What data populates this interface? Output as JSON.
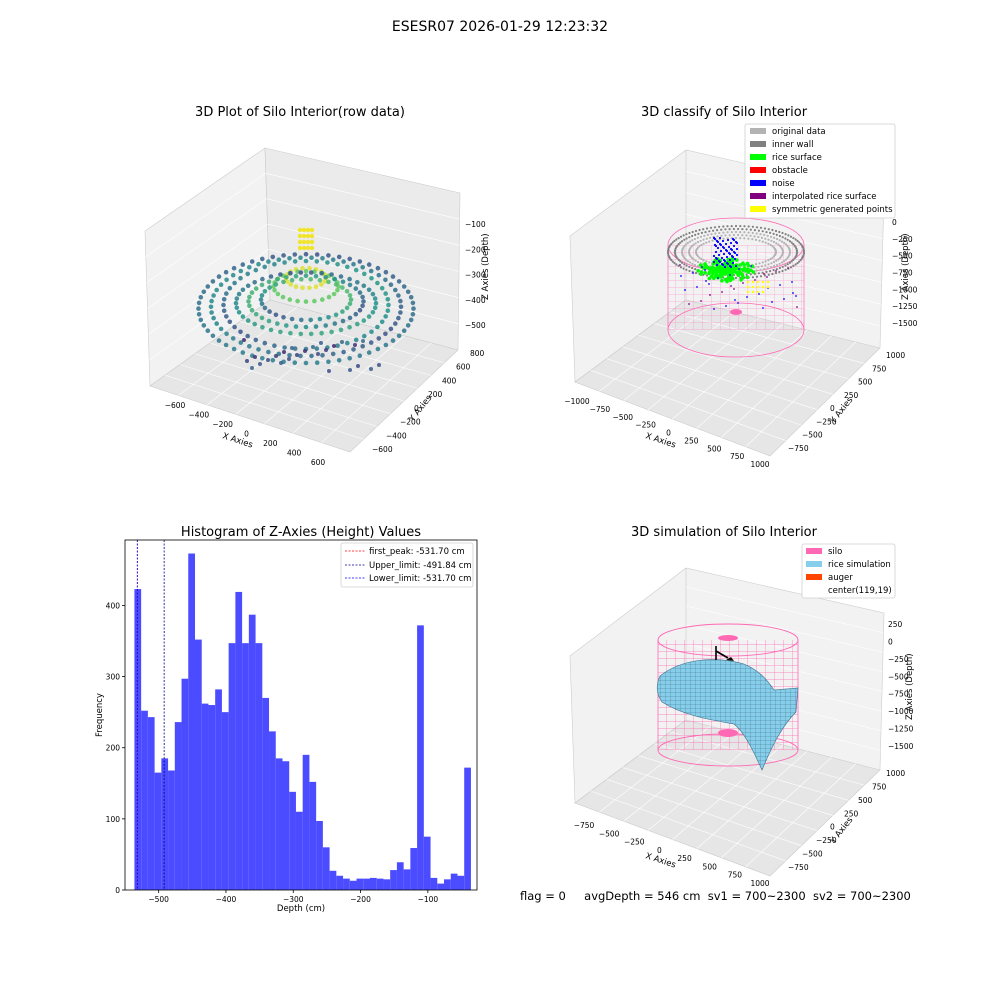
{
  "figure": {
    "suptitle": "ESESR07 2026-01-29 12:23:32",
    "status": {
      "flag": "flag = 0",
      "avg": "avgDepth = 546 cm",
      "sv1": "sv1 = 700~2300",
      "sv2": "sv2 = 700~2300"
    }
  },
  "colors": {
    "histogram_bar": "#4b4bff",
    "first_peak_line": "#ff0000",
    "upper_limit_line": "#00008b",
    "lower_limit_line": "#0000ff",
    "original_data": "#b3b3b3",
    "inner_wall": "#808080",
    "rice_surface": "#00ff00",
    "obstacle": "#ff0000",
    "noise": "#0000ff",
    "interpolated": "#800080",
    "symmetric": "#ffff00",
    "silo": "#ff69b4",
    "rice_simulation": "#87ceeb",
    "auger": "#ff4500"
  },
  "chart_data": [
    {
      "type": "scatter",
      "title": "3D Plot of Silo Interior(row data)",
      "xlabel": "X Axies",
      "ylabel": "Y Axies",
      "zlabel": "Z Axies (Depth)",
      "x_ticks": [
        "−600",
        "−400",
        "−200",
        "0",
        "200",
        "400",
        "600"
      ],
      "y_ticks": [
        "−600",
        "−400",
        "−200",
        "0",
        "200",
        "400",
        "600",
        "800"
      ],
      "z_ticks": [
        "−100",
        "−200",
        "−300",
        "−400",
        "−500"
      ],
      "colormap": "viridis",
      "xlim": [
        -700,
        700
      ],
      "ylim": [
        -700,
        850
      ],
      "zlim": [
        -560,
        -60
      ]
    },
    {
      "type": "scatter",
      "title": "3D classify of Silo Interior",
      "xlabel": "X Axies",
      "ylabel": "Y Axies",
      "zlabel": "Z Axies (Depth)",
      "x_ticks": [
        "−1000",
        "−750",
        "−500",
        "−250",
        "0",
        "250",
        "500",
        "750",
        "1000"
      ],
      "y_ticks": [
        "−750",
        "−500",
        "−250",
        "0",
        "250",
        "500",
        "750",
        "1000"
      ],
      "z_ticks": [
        "0",
        "−250",
        "−500",
        "−750",
        "−1000",
        "−1250",
        "−1500"
      ],
      "legend_position": "top-right",
      "legend": [
        "original data",
        "inner wall",
        "rice surface",
        "obstacle",
        "noise",
        "interpolated rice surface",
        "symmetric generated points"
      ]
    },
    {
      "type": "bar",
      "title": "Histogram of Z-Axies (Height) Values",
      "xlabel": "Depth (cm)",
      "ylabel": "Frequency",
      "xlim": [
        -550,
        -27
      ],
      "ylim": [
        0,
        492
      ],
      "x_ticks": [
        -500,
        -400,
        -300,
        -200,
        -100
      ],
      "y_ticks": [
        0,
        100,
        200,
        300,
        400
      ],
      "bin_start": -536,
      "bin_width": 10,
      "values": [
        423,
        252,
        243,
        165,
        185,
        168,
        236,
        297,
        473,
        352,
        262,
        260,
        282,
        250,
        347,
        419,
        347,
        387,
        347,
        270,
        223,
        185,
        181,
        138,
        110,
        190,
        152,
        97,
        60,
        27,
        20,
        16,
        13,
        16,
        16,
        17,
        16,
        15,
        28,
        39,
        29,
        59,
        372,
        75,
        17,
        9,
        15,
        23,
        20,
        172
      ],
      "legend_position": "top-right",
      "vlines": [
        {
          "name": "first_peak: -531.70 cm",
          "x": -531.7,
          "color": "#ff0000"
        },
        {
          "name": "Upper_limit: -491.84 cm",
          "x": -491.84,
          "color": "#00008b"
        },
        {
          "name": "Lower_limit: -531.70 cm",
          "x": -531.7,
          "color": "#0000ff"
        }
      ]
    },
    {
      "type": "area",
      "title": "3D simulation of Silo Interior",
      "xlabel": "X Axies",
      "ylabel": "Y Axies",
      "zlabel": "Z Axies (Depth)",
      "x_ticks": [
        "−750",
        "−500",
        "−250",
        "0",
        "250",
        "500",
        "750",
        "1000"
      ],
      "y_ticks": [
        "−750",
        "−500",
        "−250",
        "0",
        "250",
        "500",
        "750",
        "1000"
      ],
      "z_ticks": [
        "250",
        "0",
        "−250",
        "−500",
        "−750",
        "−1000",
        "−1250",
        "−1500"
      ],
      "legend_position": "top-right",
      "legend": [
        "silo",
        "rice simulation",
        "auger",
        "center(119,19)"
      ]
    }
  ]
}
